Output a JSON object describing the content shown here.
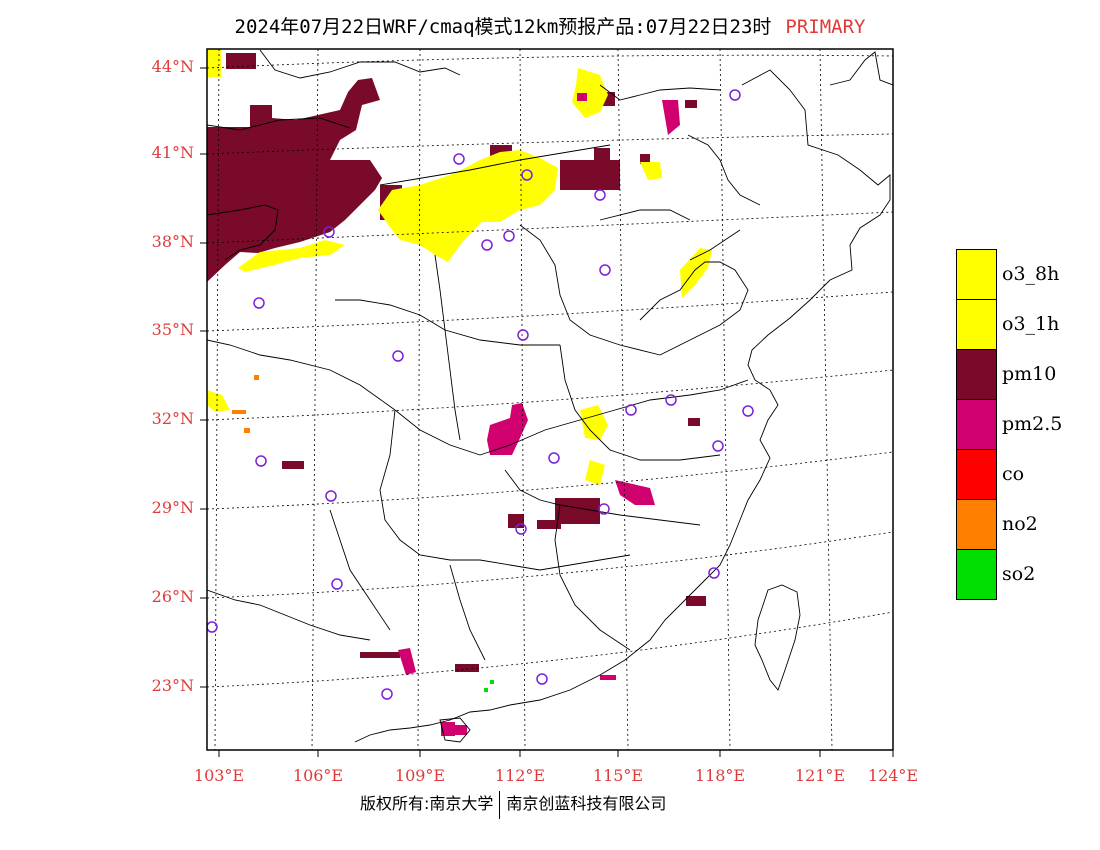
{
  "title": {
    "main": "2024年07月22日WRF/cmaq模式12km预报产品:07月22日23时",
    "tag": "PRIMARY"
  },
  "axes": {
    "lat_labels": [
      "44°N",
      "41°N",
      "38°N",
      "35°N",
      "32°N",
      "29°N",
      "26°N",
      "23°N"
    ],
    "lon_labels": [
      "103°E",
      "106°E",
      "109°E",
      "112°E",
      "115°E",
      "118°E",
      "121°E",
      "124°E"
    ]
  },
  "legend": {
    "items": [
      {
        "label": "o3_8h",
        "color": "#ffff00"
      },
      {
        "label": "o3_1h",
        "color": "#ffff00"
      },
      {
        "label": "pm10",
        "color": "#7a0a2a"
      },
      {
        "label": "pm2.5",
        "color": "#d0006f"
      },
      {
        "label": "co",
        "color": "#ff0000"
      },
      {
        "label": "no2",
        "color": "#ff7f00"
      },
      {
        "label": "so2",
        "color": "#00dd00"
      }
    ]
  },
  "footer": {
    "left": "版权所有:南京大学",
    "right": "南京创蓝科技有限公司"
  }
}
